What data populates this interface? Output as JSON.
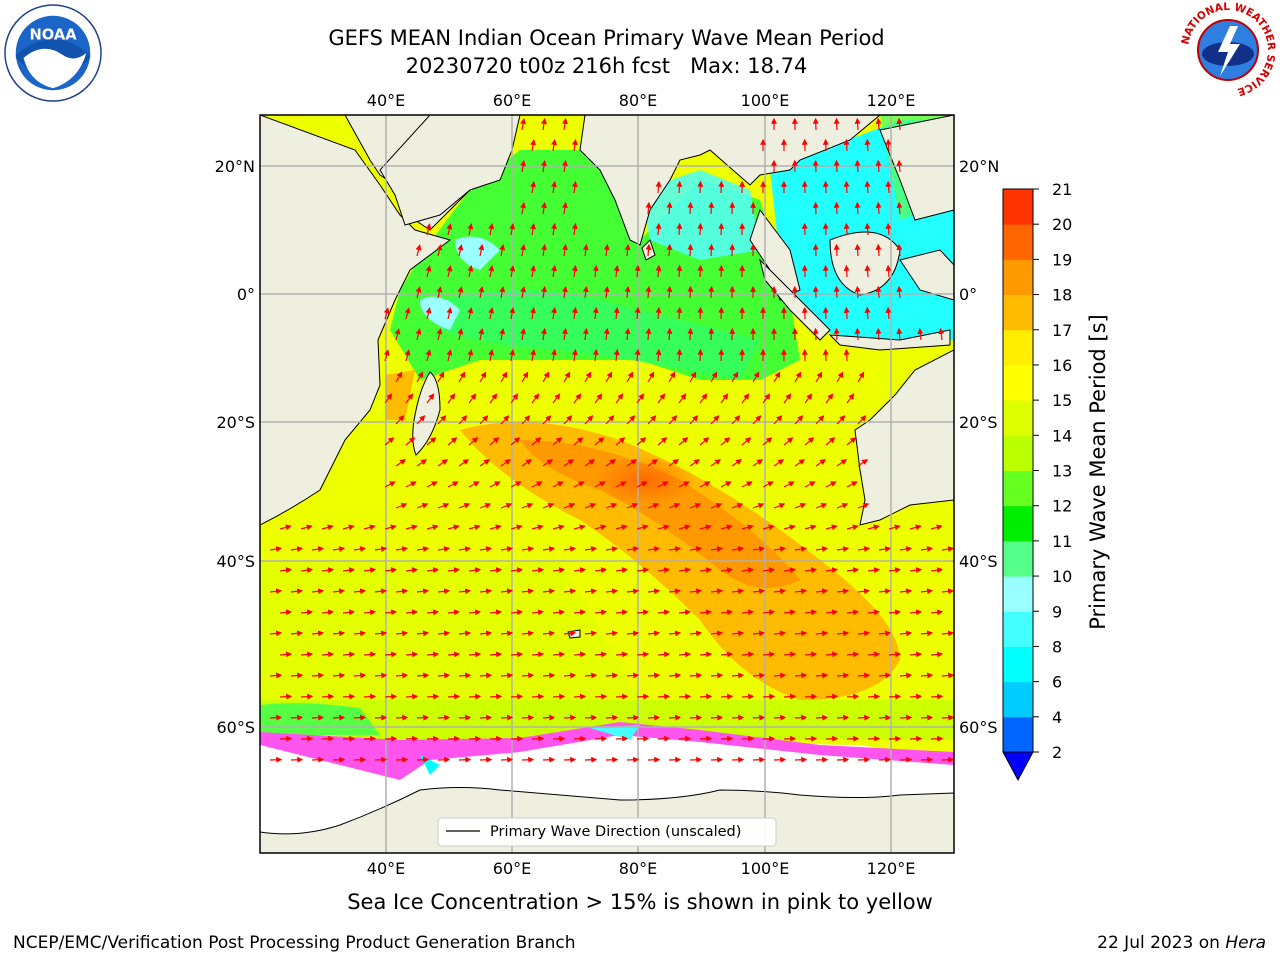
{
  "title": {
    "line1": "GEFS MEAN Indian Ocean Primary Wave Mean Period",
    "line2": "20230720 t00z 216h fcst   Max: 18.74"
  },
  "map": {
    "lon_range": [
      20,
      130
    ],
    "lat_range": [
      -72,
      28
    ],
    "lon_ticks": [
      "40°E",
      "60°E",
      "80°E",
      "100°E",
      "120°E"
    ],
    "lat_ticks": [
      "20°N",
      "0°",
      "20°S",
      "40°S",
      "60°S"
    ],
    "legend_label": "Primary Wave Direction (unscaled)",
    "arrow_color": "#ff0000",
    "land_color": "#efefdf"
  },
  "colorbar": {
    "label": "Primary Wave Mean Period [s]",
    "ticks": [
      "2",
      "4",
      "6",
      "8",
      "9",
      "10",
      "11",
      "12",
      "13",
      "14",
      "15",
      "16",
      "17",
      "18",
      "19",
      "20",
      "21"
    ],
    "colors": [
      "#0066ff",
      "#00ccff",
      "#00ffff",
      "#44ffff",
      "#99ffff",
      "#55ff88",
      "#00ee00",
      "#66ff22",
      "#bbff00",
      "#ddff00",
      "#ffff00",
      "#ffee00",
      "#ffbb00",
      "#ff9900",
      "#ff6600",
      "#ff3300"
    ],
    "under_color": "#0000ff"
  },
  "footer": {
    "note": "Sea Ice Concentration > 15% is shown in pink to yellow",
    "left": "NCEP/EMC/Verification Post Processing Product Generation Branch",
    "right_date": "22 Jul 2023 on",
    "right_host": "Hera"
  },
  "logos": {
    "noaa": "NOAA",
    "nws": "NATIONAL WEATHER SERVICE"
  }
}
